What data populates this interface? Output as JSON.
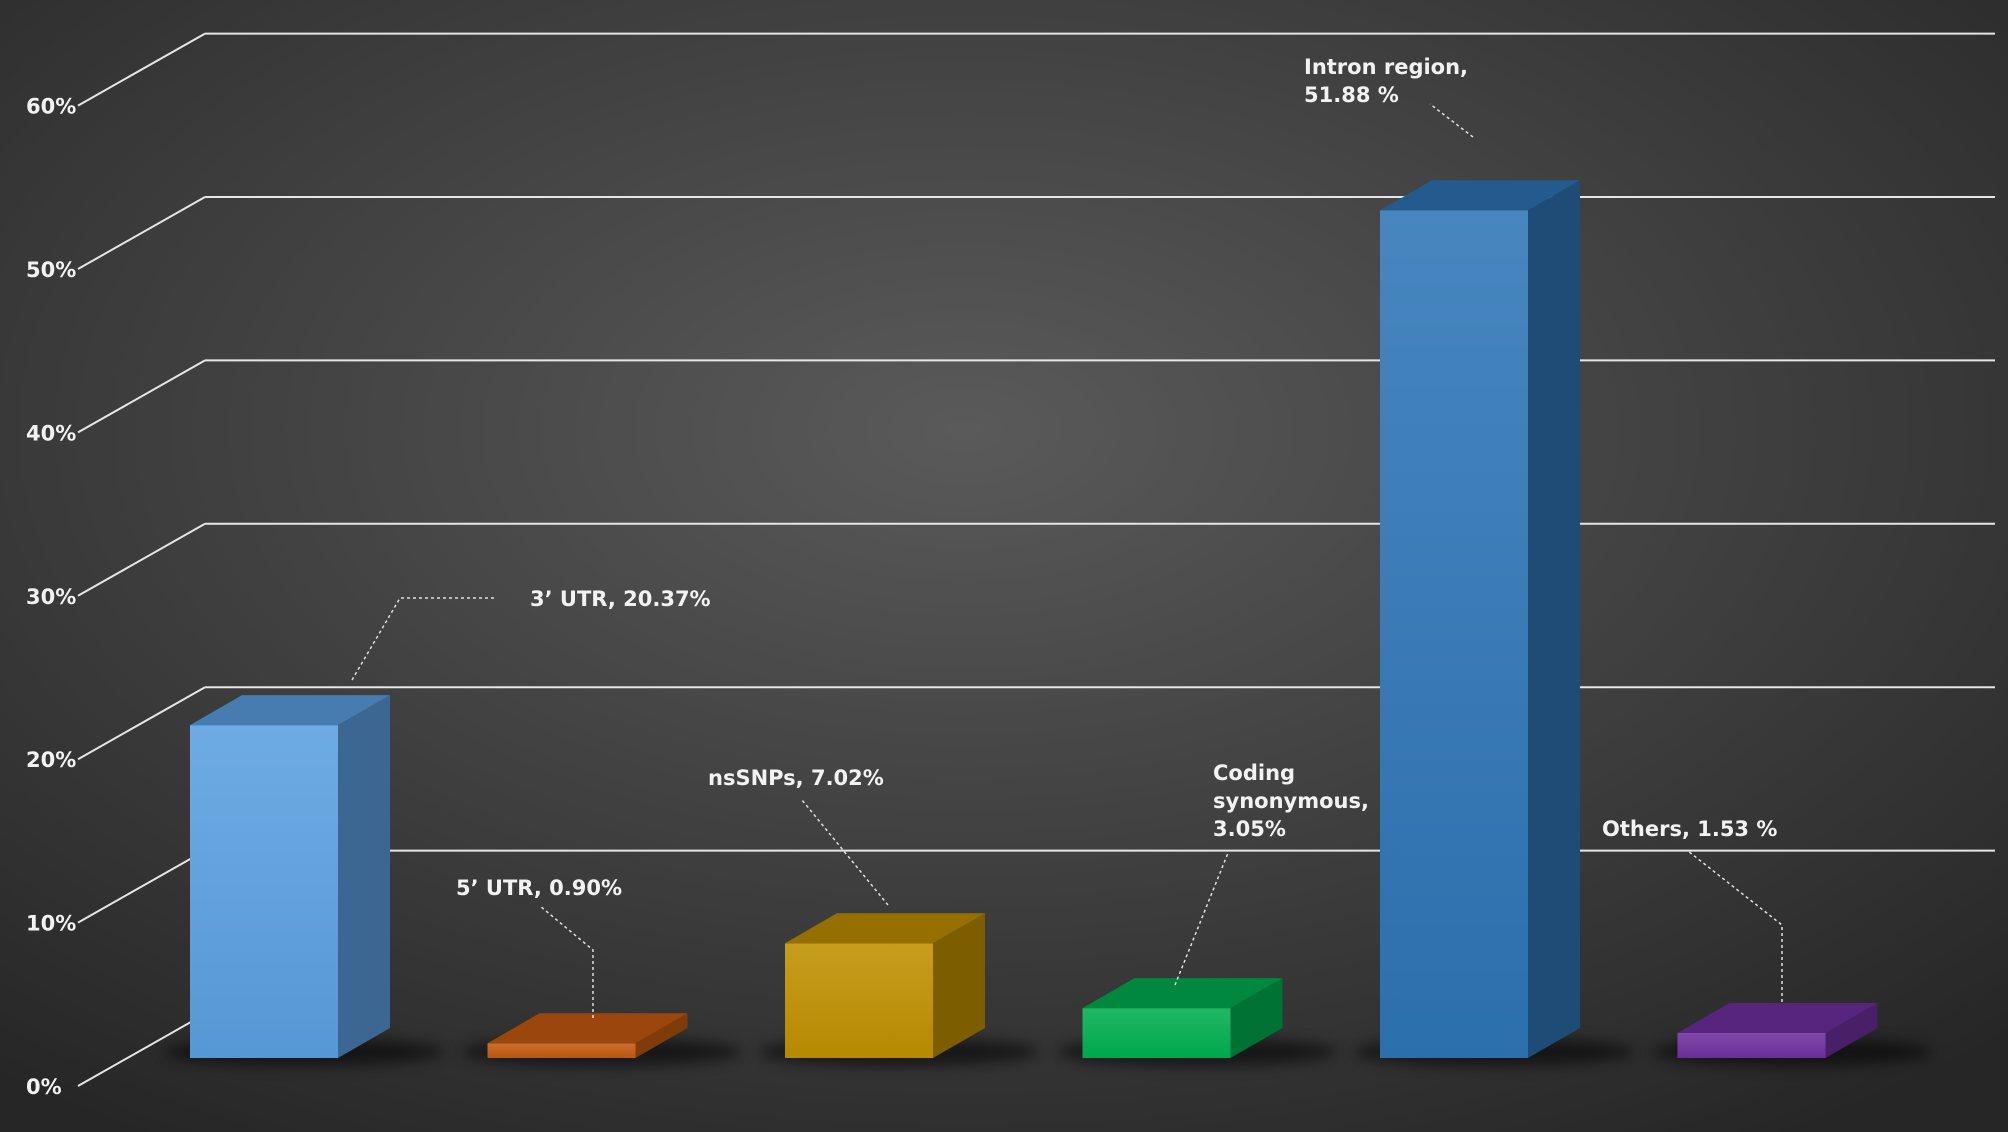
{
  "chart_data": {
    "type": "bar",
    "categories": [
      "3’ UTR",
      "5’ UTR",
      "nsSNPs",
      "Coding synonymous",
      "Intron region",
      "Others"
    ],
    "values": [
      20.37,
      0.9,
      7.02,
      3.05,
      51.88,
      1.53
    ],
    "ylim": [
      0,
      60
    ],
    "yticks": [
      0,
      10,
      20,
      30,
      40,
      50,
      60
    ],
    "ytick_labels": [
      "0%",
      "10%",
      "20%",
      "30%",
      "40%",
      "50%",
      "60%"
    ],
    "grid": true,
    "style": "3d-columns",
    "colors": [
      "#5a9fe0",
      "#c55a11",
      "#bf9000",
      "#00b050",
      "#2e75b6",
      "#7030a0"
    ],
    "annotations": [
      [
        "3’ UTR, 20.37%"
      ],
      [
        "5’ UTR, 0.90%"
      ],
      [
        "nsSNPs, 7.02%"
      ],
      [
        "Coding",
        "synonymous,",
        "3.05%"
      ],
      [
        "Intron region,",
        "51.88 %"
      ],
      [
        "Others, 1.53 %"
      ]
    ]
  }
}
